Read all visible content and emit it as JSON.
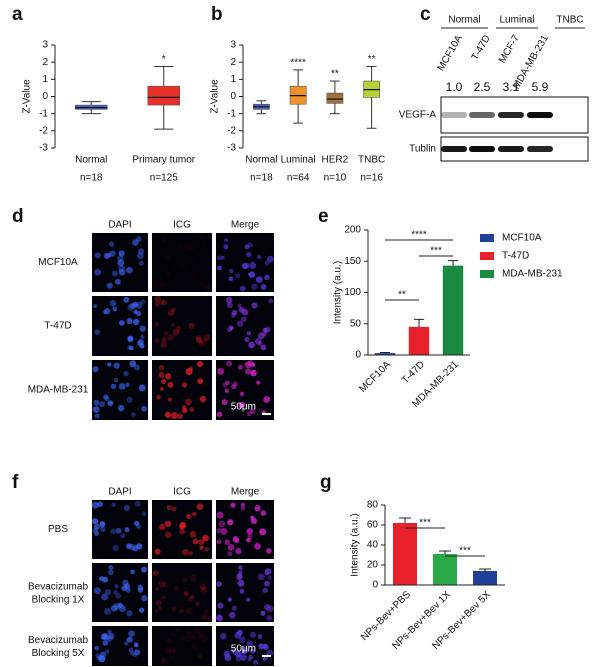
{
  "panel_labels": [
    "a",
    "b",
    "c",
    "d",
    "e",
    "f",
    "g"
  ],
  "chart_data": [
    {
      "type": "box",
      "y_label": "Z-Value",
      "categories": [
        "Normal",
        "Primary tumor"
      ],
      "counts": [
        "n=18",
        "n=125"
      ],
      "boxes": [
        {
          "min": -1.0,
          "q1": -0.75,
          "median": -0.65,
          "q3": -0.5,
          "max": -0.3
        },
        {
          "min": -1.9,
          "q1": -0.5,
          "median": -0.05,
          "q3": 0.6,
          "max": 1.75
        }
      ],
      "colors": [
        "#4a5fc1",
        "#e8302a"
      ],
      "annotations": [
        null,
        "*"
      ],
      "ylim": [
        -3,
        3
      ],
      "yticks": [
        -3,
        -2,
        -1,
        0,
        1,
        2,
        3
      ]
    },
    {
      "type": "box",
      "y_label": "Z-Value",
      "categories": [
        "Normal",
        "Luminal",
        "HER2",
        "TNBC"
      ],
      "counts": [
        "n=18",
        "n=64",
        "n=10",
        "n=16"
      ],
      "boxes": [
        {
          "min": -1.0,
          "q1": -0.75,
          "median": -0.6,
          "q3": -0.45,
          "max": -0.25
        },
        {
          "min": -1.55,
          "q1": -0.45,
          "median": 0.05,
          "q3": 0.6,
          "max": 1.55
        },
        {
          "min": -1.0,
          "q1": -0.4,
          "median": -0.15,
          "q3": 0.2,
          "max": 0.9
        },
        {
          "min": -1.85,
          "q1": -0.05,
          "median": 0.4,
          "q3": 0.9,
          "max": 1.75
        }
      ],
      "colors": [
        "#4a5fc1",
        "#f0922a",
        "#a0703a",
        "#b5d334"
      ],
      "annotations": [
        null,
        "****",
        "**",
        "**"
      ],
      "ylim": [
        -3,
        3
      ],
      "yticks": [
        -3,
        -2,
        -1,
        0,
        1,
        2,
        3
      ]
    },
    {
      "type": "bar",
      "y_label": "Intensity (a.u.)",
      "categories": [
        "MCF10A",
        "T-47D",
        "MDA-MB-231"
      ],
      "values": [
        3,
        45,
        143
      ],
      "errors": [
        1,
        12,
        8
      ],
      "colors": [
        "#1f3f99",
        "#e8202a",
        "#1a8a40"
      ],
      "legend": "right",
      "significance": [
        "**",
        "***",
        "****"
      ],
      "ylim": [
        0,
        200
      ],
      "yticks": [
        0,
        50,
        100,
        150,
        200
      ]
    },
    {
      "type": "bar",
      "y_label": "Intensity (a.u.)",
      "categories": [
        "NPs-Bev+PBS",
        "NPs-Bev+Bev 1X",
        "NPs-Bev+Bev 5X"
      ],
      "values": [
        62,
        31,
        14
      ],
      "errors": [
        5,
        3,
        2
      ],
      "colors": [
        "#e8202a",
        "#2aa84a",
        "#1f3f99"
      ],
      "significance": [
        "***",
        "***"
      ],
      "ylim": [
        0,
        80
      ],
      "yticks": [
        0,
        20,
        40,
        60,
        80
      ]
    }
  ],
  "blot": {
    "groups": [
      "Normal",
      "Luminal",
      "TNBC"
    ],
    "lanes": [
      "MCF10A",
      "T-47D",
      "MCF-7",
      "MDA-MB-231"
    ],
    "ratios": [
      "1.0",
      "2.5",
      "3.1",
      "5.9"
    ],
    "rows": [
      "VEGF-A",
      "Tublin"
    ]
  },
  "microscopy": [
    {
      "columns": [
        "DAPI",
        "ICG",
        "Merge"
      ],
      "rows": [
        "MCF10A",
        "T-47D",
        "MDA-MB-231"
      ],
      "scale_bar": "50μm"
    },
    {
      "columns": [
        "DAPI",
        "ICG",
        "Merge"
      ],
      "rows": [
        "PBS",
        "Bevacizumab Blocking 1X",
        "Bevacizumab Blocking 5X"
      ],
      "scale_bar": "50μm"
    }
  ]
}
